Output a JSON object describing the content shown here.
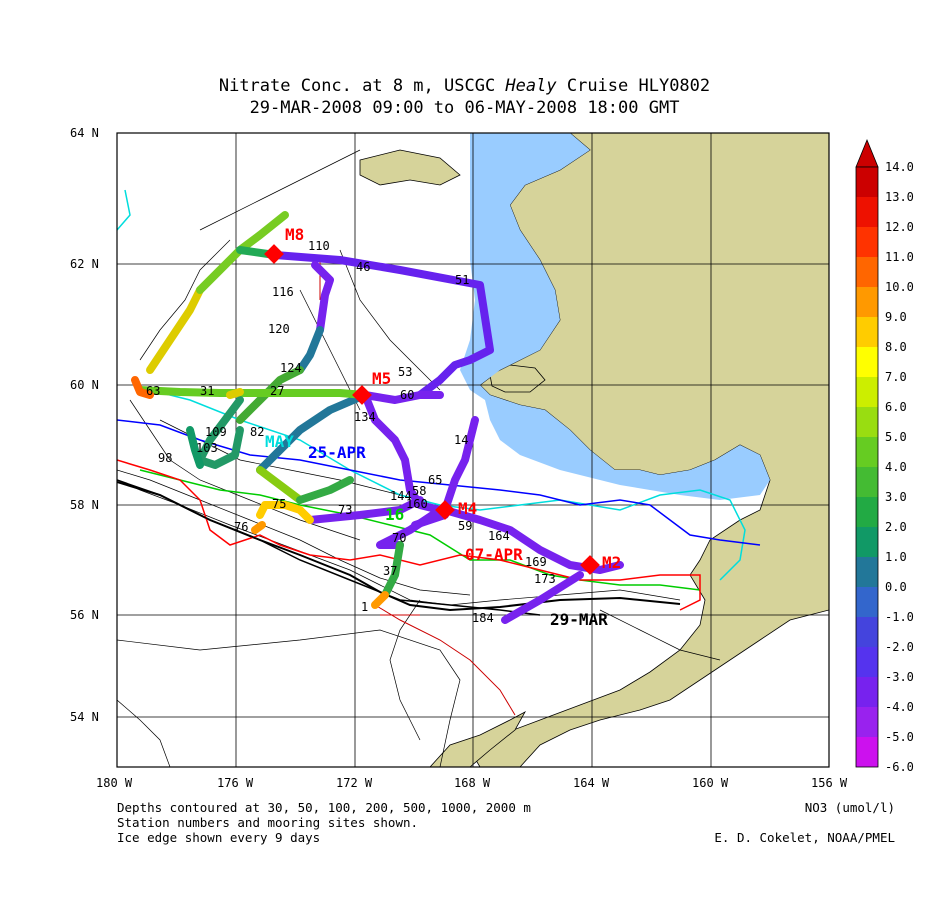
{
  "title": {
    "line1_pre": "Nitrate Conc. at 8 m, USCGC ",
    "line1_ship": "Healy",
    "line1_post": " Cruise HLY0802",
    "line2": "29-MAR-2008 09:00 to 06-MAY-2008 18:00 GMT"
  },
  "axes": {
    "lon_labels": [
      "180 W",
      "176 W",
      "172 W",
      "168 W",
      "164 W",
      "160 W",
      "156 W"
    ],
    "lat_labels": [
      "64 N",
      "62 N",
      "60 N",
      "58 N",
      "56 N",
      "54 N"
    ]
  },
  "colorbar": {
    "label": "NO3 (umol/l)",
    "ticks": [
      "14.0",
      "13.0",
      "12.0",
      "11.0",
      "10.0",
      "9.0",
      "8.0",
      "7.0",
      "6.0",
      "5.0",
      "4.0",
      "3.0",
      "2.0",
      "1.0",
      "0.0",
      "-1.0",
      "-2.0",
      "-3.0",
      "-4.0",
      "-5.0",
      "-6.0"
    ],
    "colors": [
      "#cc0000",
      "#ee1100",
      "#ff3300",
      "#ff6600",
      "#ff9900",
      "#ffcc00",
      "#ffff00",
      "#ccee00",
      "#99dd11",
      "#66cc22",
      "#44bb33",
      "#22aa44",
      "#119966",
      "#227799",
      "#3366cc",
      "#4444dd",
      "#5533ee",
      "#7722ee",
      "#9922ee",
      "#cc11ee"
    ]
  },
  "moorings": [
    {
      "label": "M8"
    },
    {
      "label": "M5"
    },
    {
      "label": "M4"
    },
    {
      "label": "M2"
    }
  ],
  "stations": [
    "110",
    "46",
    "51",
    "116",
    "120",
    "124",
    "53",
    "60",
    "134",
    "14",
    "65",
    "58",
    "59",
    "144",
    "160",
    "164",
    "169",
    "173",
    "70",
    "73",
    "37",
    "1",
    "184",
    "63",
    "31",
    "27",
    "82",
    "98",
    "76",
    "75",
    "109",
    "103"
  ],
  "ice_edges": [
    {
      "label": "29-MAR",
      "color": "#000000"
    },
    {
      "label": "07-APR",
      "color": "#ff0000"
    },
    {
      "label": "16",
      "color": "#00cc00"
    },
    {
      "label": "25-APR",
      "color": "#0000ff"
    },
    {
      "label": "MAY",
      "color": "#00dddd"
    }
  ],
  "footer": {
    "line1": "Depths contoured at 30, 50, 100, 200, 500, 1000, 2000 m",
    "line2": "Station numbers and mooring sites shown.",
    "line3": "Ice edge shown every 9 days",
    "credit": "E. D. Cokelet, NOAA/PMEL"
  },
  "colors": {
    "land": "#d6d39a",
    "sea_ice": "#99ccff",
    "mooring": "#ff0000"
  }
}
